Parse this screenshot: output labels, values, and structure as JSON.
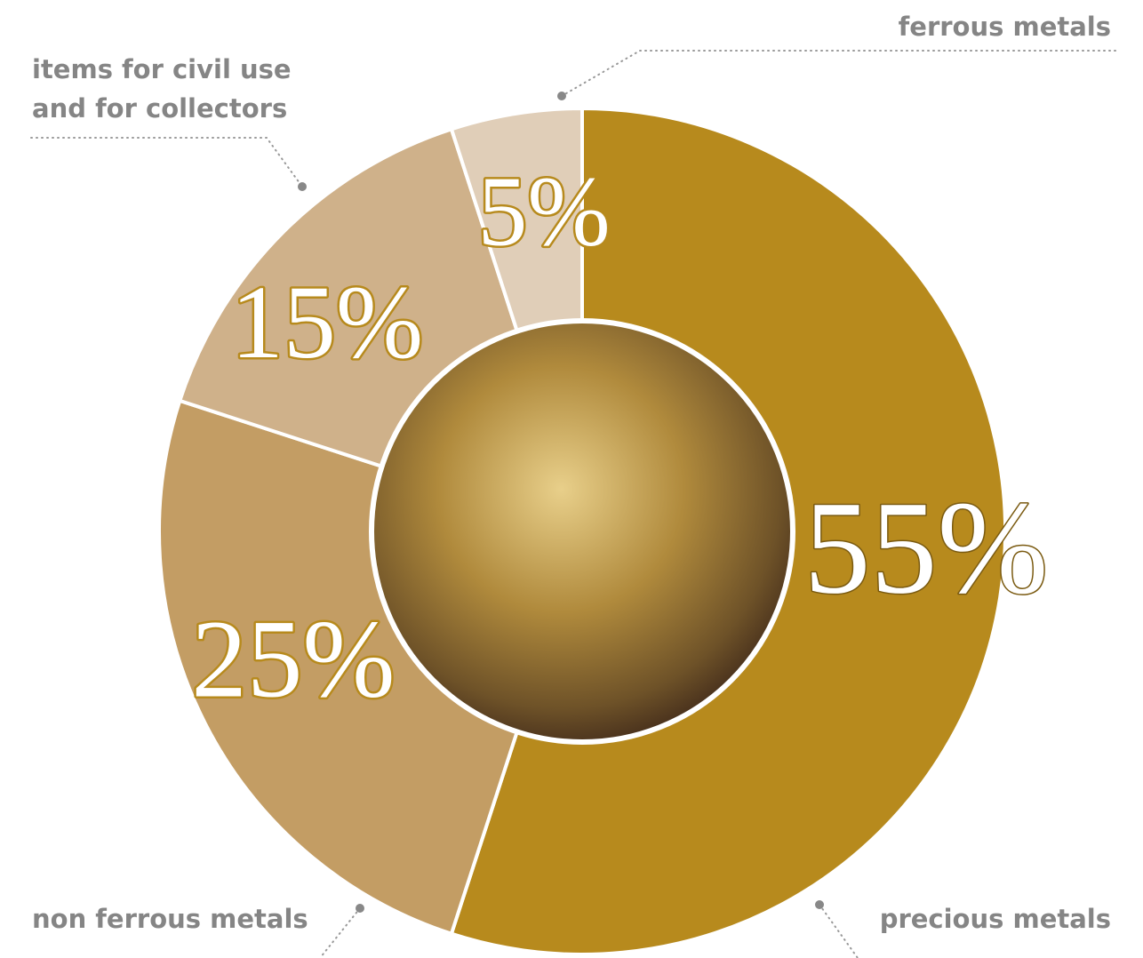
{
  "chart_data": {
    "type": "donut",
    "categories": [
      "precious metals",
      "non ferrous metals",
      "items for civil use and for collectors",
      "ferrous metals"
    ],
    "values": [
      55,
      25,
      15,
      5
    ],
    "value_labels": [
      "55%",
      "25%",
      "15%",
      "5%"
    ],
    "colors": [
      "#b78a1d",
      "#c39d64",
      "#cfb18a",
      "#e0ceb8"
    ]
  }
}
